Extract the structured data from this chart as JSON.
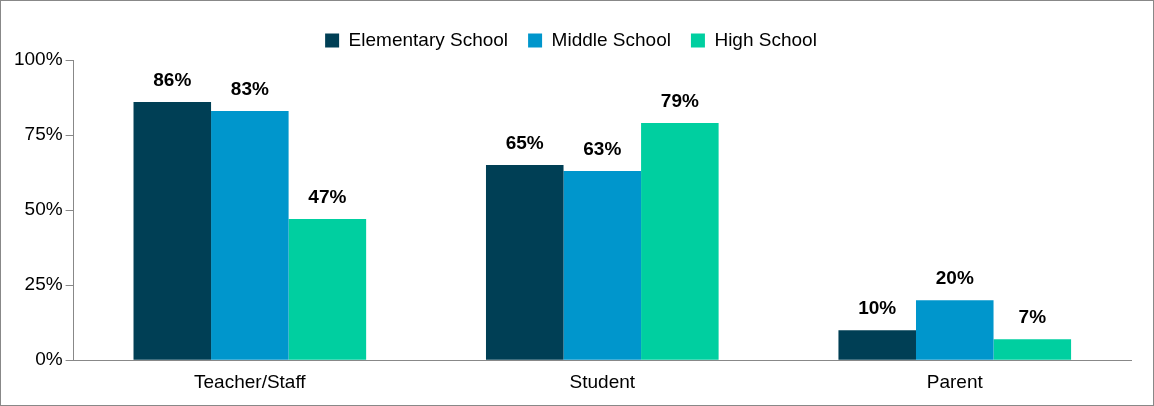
{
  "chart_data": {
    "type": "bar",
    "categories": [
      "Teacher/Staff",
      "Student",
      "Parent"
    ],
    "series": [
      {
        "name": "Elementary School",
        "color": "#003f55",
        "values": [
          86,
          65,
          10
        ],
        "value_labels": [
          "86%",
          "65%",
          "10%"
        ]
      },
      {
        "name": "Middle School",
        "color": "#0096cc",
        "values": [
          83,
          63,
          20
        ],
        "value_labels": [
          "83%",
          "63%",
          "20%"
        ]
      },
      {
        "name": "High School",
        "color": "#00cfa0",
        "values": [
          47,
          79,
          7
        ],
        "value_labels": [
          "47%",
          "79%",
          "7%"
        ]
      }
    ],
    "ylim": [
      0,
      100
    ],
    "yticks": [
      {
        "value": 0,
        "label": "0%"
      },
      {
        "value": 25,
        "label": "25%"
      },
      {
        "value": 50,
        "label": "50%"
      },
      {
        "value": 75,
        "label": "75%"
      },
      {
        "value": 100,
        "label": "100%"
      }
    ],
    "grid": false,
    "legend": "top"
  }
}
